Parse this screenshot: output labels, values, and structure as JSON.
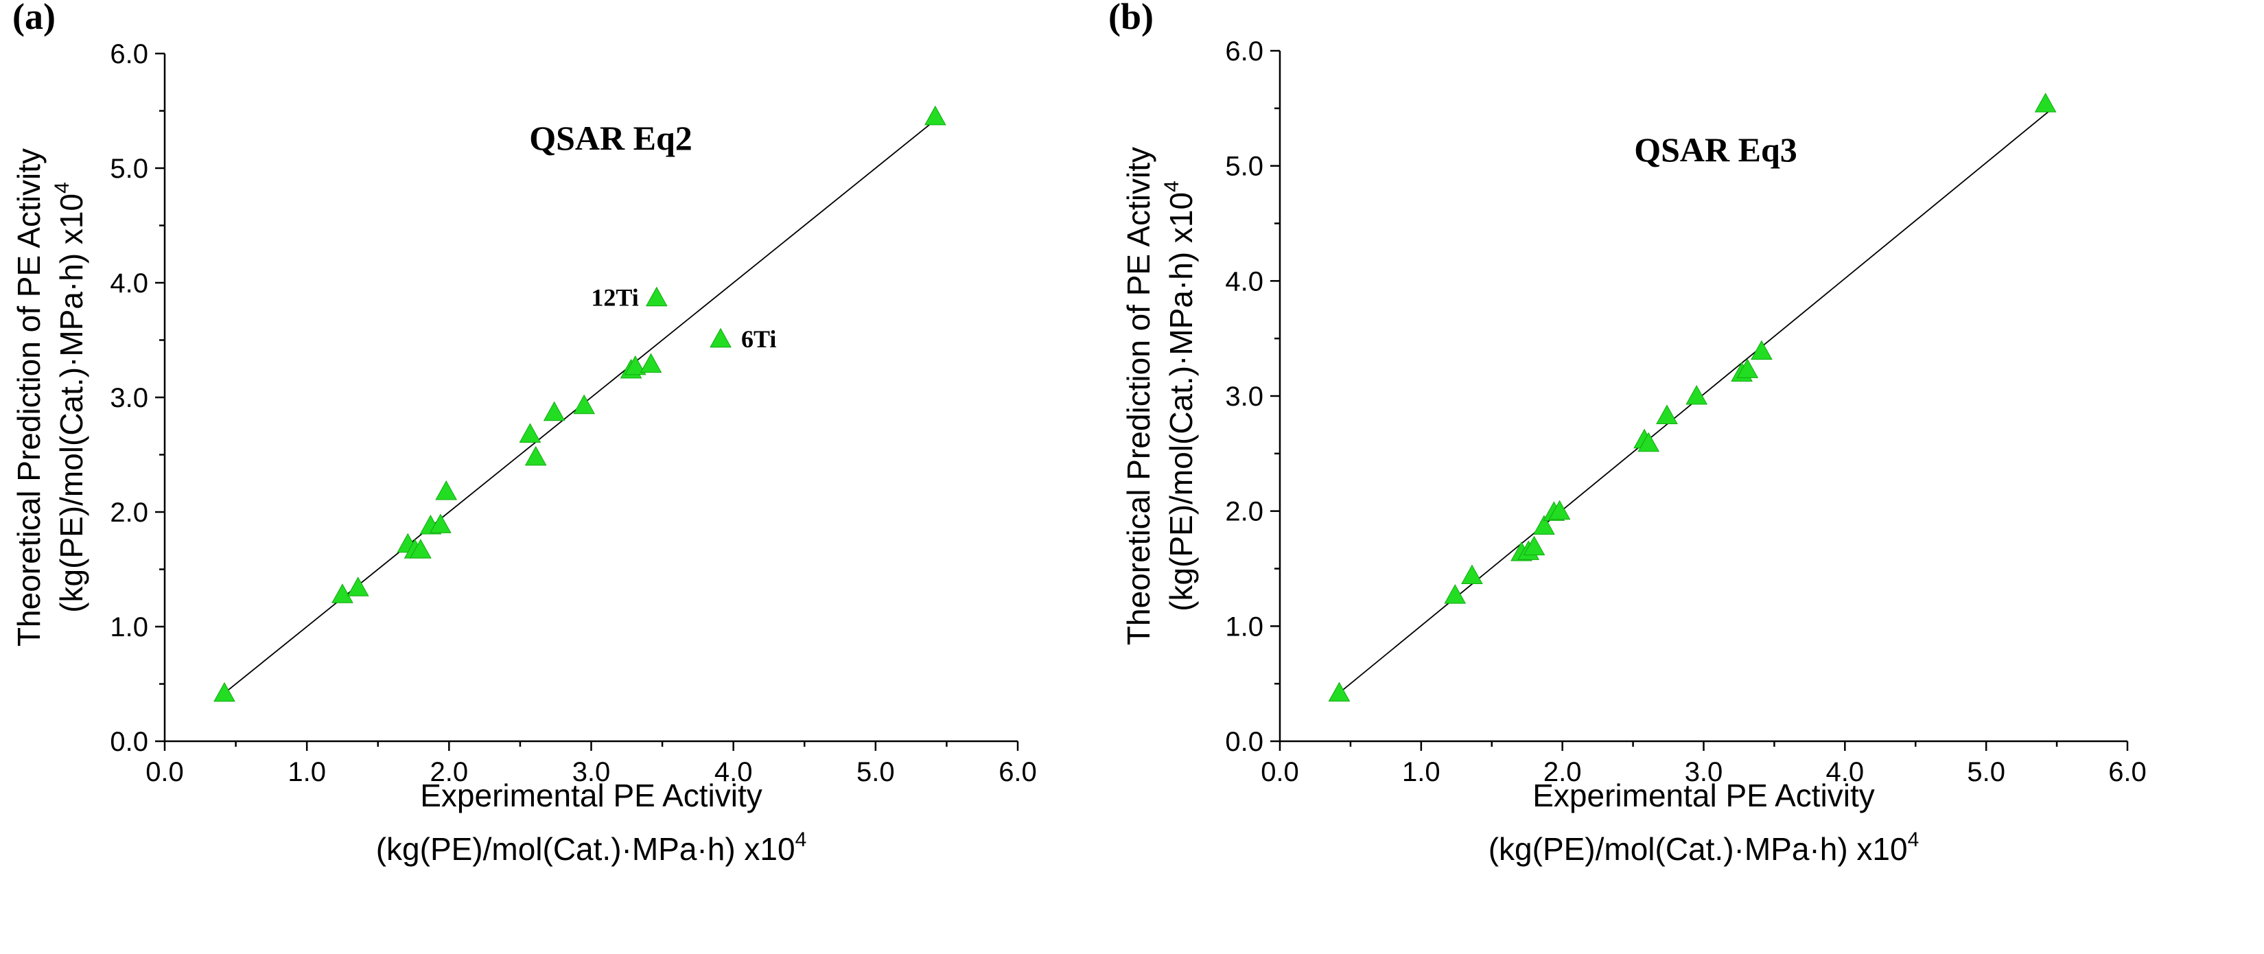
{
  "chart_data": [
    {
      "type": "scatter",
      "panel_label": "(a)",
      "title": "QSAR Eq2",
      "xlabel": "Experimental PE Activity",
      "xlabel_line2": "(kg(PE)/mol(Cat.)·MPa·h) x10",
      "xlabel_sup": "4",
      "ylabel": "Theoretical Prediction of PE Activity",
      "ylabel_line2": "(kg(PE)/mol(Cat.)·MPa·h) x10",
      "ylabel_sup": "4",
      "xlim": [
        0,
        6
      ],
      "ylim": [
        0,
        6
      ],
      "ticks": [
        "0.0",
        "1.0",
        "2.0",
        "3.0",
        "4.0",
        "5.0",
        "6.0"
      ],
      "fit_line": {
        "x": [
          0.4,
          5.4
        ],
        "y": [
          0.4,
          5.4
        ]
      },
      "points": [
        {
          "x": 0.42,
          "y": 0.42
        },
        {
          "x": 1.25,
          "y": 1.28
        },
        {
          "x": 1.36,
          "y": 1.34
        },
        {
          "x": 1.71,
          "y": 1.72
        },
        {
          "x": 1.76,
          "y": 1.67
        },
        {
          "x": 1.8,
          "y": 1.67
        },
        {
          "x": 1.87,
          "y": 1.88
        },
        {
          "x": 1.94,
          "y": 1.89
        },
        {
          "x": 1.98,
          "y": 2.18
        },
        {
          "x": 2.57,
          "y": 2.68
        },
        {
          "x": 2.61,
          "y": 2.48
        },
        {
          "x": 2.74,
          "y": 2.87
        },
        {
          "x": 2.95,
          "y": 2.93
        },
        {
          "x": 3.28,
          "y": 3.24
        },
        {
          "x": 3.31,
          "y": 3.27
        },
        {
          "x": 3.42,
          "y": 3.29
        },
        {
          "x": 3.46,
          "y": 3.87
        },
        {
          "x": 3.91,
          "y": 3.51
        },
        {
          "x": 5.42,
          "y": 5.45
        }
      ],
      "annotations": [
        {
          "text": "12Ti",
          "x": 3.46,
          "y": 3.87,
          "side": "left"
        },
        {
          "text": "6Ti",
          "x": 3.91,
          "y": 3.51,
          "side": "right"
        }
      ]
    },
    {
      "type": "scatter",
      "panel_label": "(b)",
      "title": "QSAR Eq3",
      "xlabel": "Experimental PE Activity",
      "xlabel_line2": "(kg(PE)/mol(Cat.)·MPa·h) x10",
      "xlabel_sup": "4",
      "ylabel": "Theoretical Prediction of PE Activity",
      "ylabel_line2": "(kg(PE)/mol(Cat.)·MPa·h) x10",
      "ylabel_sup": "4",
      "xlim": [
        0,
        6
      ],
      "ylim": [
        0,
        6
      ],
      "ticks": [
        "0.0",
        "1.0",
        "2.0",
        "3.0",
        "4.0",
        "5.0",
        "6.0"
      ],
      "fit_line": {
        "x": [
          0.4,
          5.45
        ],
        "y": [
          0.4,
          5.48
        ]
      },
      "points": [
        {
          "x": 0.42,
          "y": 0.42
        },
        {
          "x": 1.24,
          "y": 1.27
        },
        {
          "x": 1.36,
          "y": 1.44
        },
        {
          "x": 1.71,
          "y": 1.64
        },
        {
          "x": 1.76,
          "y": 1.65
        },
        {
          "x": 1.8,
          "y": 1.69
        },
        {
          "x": 1.87,
          "y": 1.87
        },
        {
          "x": 1.94,
          "y": 1.99
        },
        {
          "x": 1.98,
          "y": 2.0
        },
        {
          "x": 2.58,
          "y": 2.62
        },
        {
          "x": 2.61,
          "y": 2.59
        },
        {
          "x": 2.74,
          "y": 2.83
        },
        {
          "x": 2.95,
          "y": 3.0
        },
        {
          "x": 3.27,
          "y": 3.2
        },
        {
          "x": 3.31,
          "y": 3.23
        },
        {
          "x": 3.41,
          "y": 3.39
        },
        {
          "x": 5.42,
          "y": 5.54
        }
      ],
      "annotations": []
    }
  ]
}
